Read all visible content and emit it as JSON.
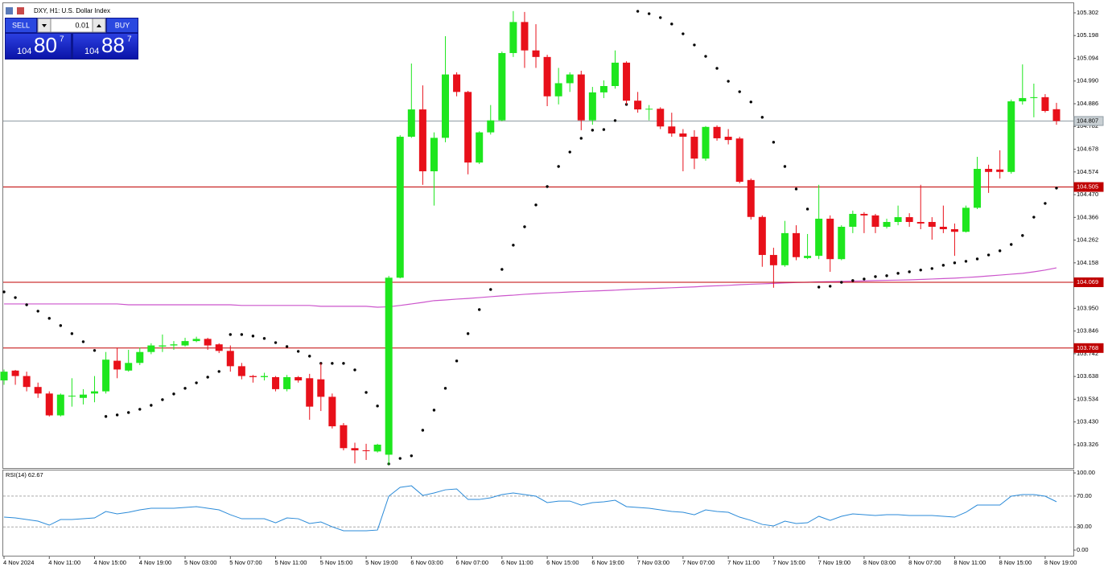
{
  "chart_data": [
    {
      "type": "candlestick",
      "title": "DXY, H1:  U.S. Dollar Index",
      "categories": [
        "4 Nov 2024",
        null,
        null,
        null,
        "4 Nov 11:00",
        null,
        null,
        null,
        "4 Nov 15:00",
        null,
        null,
        null,
        "4 Nov 19:00",
        null,
        null,
        null,
        "5 Nov 03:00",
        null,
        null,
        null,
        "5 Nov 07:00",
        null,
        null,
        null,
        "5 Nov 11:00",
        null,
        null,
        null,
        "5 Nov 15:00",
        null,
        null,
        null,
        "5 Nov 19:00",
        null,
        null,
        null,
        "6 Nov 03:00",
        null,
        null,
        null,
        "6 Nov 07:00",
        null,
        null,
        null,
        "6 Nov 11:00",
        null,
        null,
        null,
        "6 Nov 15:00",
        null,
        null,
        null,
        "6 Nov 19:00",
        null,
        null,
        null,
        "7 Nov 03:00",
        null,
        null,
        null,
        "7 Nov 07:00",
        null,
        null,
        null,
        "7 Nov 11:00",
        null,
        null,
        null,
        "7 Nov 15:00",
        null,
        null,
        null,
        "7 Nov 19:00",
        null,
        null,
        null,
        "8 Nov 03:00",
        null,
        null,
        null,
        "8 Nov 07:00",
        null,
        null,
        null,
        "8 Nov 11:00",
        null,
        null,
        null,
        "8 Nov 15:00",
        null,
        null,
        null,
        "8 Nov 19:00",
        null
      ],
      "open": [
        103.62,
        103.665,
        103.64,
        103.59,
        103.56,
        103.46,
        103.55,
        103.54,
        103.56,
        103.57,
        103.71,
        103.665,
        103.7,
        103.75,
        103.775,
        103.78,
        103.78,
        103.8,
        103.81,
        103.785,
        103.755,
        103.685,
        103.64,
        103.635,
        103.635,
        103.58,
        103.635,
        103.63,
        103.625,
        103.545,
        103.415,
        103.31,
        103.3,
        103.295,
        103.28,
        104.09,
        104.735,
        104.86,
        104.577,
        104.73,
        105.02,
        104.94,
        104.617,
        104.755,
        104.81,
        105.118,
        105.26,
        105.13,
        105.1,
        104.92,
        104.98,
        105.02,
        104.81,
        104.938,
        104.967,
        105.074,
        104.9,
        104.86,
        104.863,
        104.782,
        104.75,
        104.735,
        104.635,
        104.78,
        104.735,
        104.727,
        104.537,
        104.368,
        104.194,
        104.147,
        104.294,
        104.18,
        104.19,
        104.36,
        104.175,
        104.323,
        104.382,
        104.375,
        104.323,
        104.345,
        104.367,
        104.345,
        104.345,
        104.323,
        104.312,
        104.3,
        104.41,
        104.588,
        104.585,
        104.574,
        104.897,
        104.912,
        104.916,
        104.861
      ],
      "high": [
        103.67,
        103.668,
        103.66,
        103.61,
        103.57,
        103.56,
        103.63,
        103.58,
        103.64,
        103.75,
        103.77,
        103.76,
        103.77,
        103.79,
        103.83,
        103.8,
        103.815,
        103.82,
        103.815,
        103.79,
        103.78,
        103.7,
        103.645,
        103.655,
        103.64,
        103.645,
        103.64,
        103.65,
        103.7,
        103.56,
        103.425,
        103.335,
        103.33,
        103.33,
        104.098,
        104.742,
        105.07,
        104.97,
        104.755,
        105.195,
        105.03,
        104.945,
        104.76,
        104.88,
        105.125,
        105.31,
        105.306,
        105.25,
        105.11,
        105.05,
        105.03,
        105.037,
        104.963,
        104.993,
        105.13,
        105.08,
        104.94,
        104.88,
        104.87,
        104.845,
        104.77,
        104.765,
        104.784,
        104.787,
        104.77,
        104.735,
        104.544,
        104.375,
        104.227,
        104.35,
        104.33,
        104.29,
        104.515,
        104.375,
        104.33,
        104.397,
        104.39,
        104.382,
        104.36,
        104.42,
        104.385,
        104.515,
        104.367,
        104.42,
        104.338,
        104.42,
        104.643,
        104.607,
        104.673,
        104.905,
        105.066,
        104.978,
        104.93,
        104.89
      ],
      "low": [
        103.6,
        103.6,
        103.57,
        103.54,
        103.455,
        103.455,
        103.5,
        103.51,
        103.52,
        103.56,
        103.63,
        103.66,
        103.69,
        103.74,
        103.75,
        103.76,
        103.775,
        103.795,
        103.76,
        103.745,
        103.66,
        103.625,
        103.61,
        103.62,
        103.57,
        103.57,
        103.61,
        103.44,
        103.48,
        103.4,
        103.3,
        103.24,
        103.256,
        103.29,
        103.233,
        104.087,
        104.73,
        104.515,
        104.42,
        104.71,
        104.92,
        104.563,
        104.61,
        104.745,
        104.805,
        105.1,
        105.05,
        105.05,
        104.875,
        104.883,
        104.94,
        104.765,
        104.79,
        104.912,
        104.955,
        104.882,
        104.845,
        104.81,
        104.77,
        104.735,
        104.577,
        104.587,
        104.625,
        104.717,
        104.7,
        104.522,
        104.356,
        104.14,
        104.044,
        104.14,
        104.17,
        104.175,
        104.175,
        104.117,
        104.17,
        104.294,
        104.294,
        104.294,
        104.315,
        104.33,
        104.323,
        104.312,
        104.264,
        104.294,
        104.19,
        104.297,
        104.404,
        104.478,
        104.544,
        104.566,
        104.882,
        104.824,
        104.846,
        104.79
      ],
      "close": [
        103.66,
        103.64,
        103.59,
        103.56,
        103.46,
        103.555,
        103.55,
        103.555,
        103.57,
        103.715,
        103.67,
        103.7,
        103.75,
        103.78,
        103.78,
        103.785,
        103.8,
        103.81,
        103.78,
        103.755,
        103.685,
        103.64,
        103.635,
        103.64,
        103.58,
        103.635,
        103.62,
        103.5,
        103.545,
        103.41,
        103.31,
        103.3,
        103.297,
        103.326,
        104.09,
        104.735,
        104.86,
        104.577,
        104.73,
        105.02,
        104.94,
        104.617,
        104.755,
        104.81,
        105.118,
        105.26,
        105.13,
        105.1,
        104.92,
        104.98,
        105.02,
        104.81,
        104.938,
        104.967,
        105.074,
        104.9,
        104.86,
        104.863,
        104.782,
        104.75,
        104.735,
        104.635,
        104.78,
        104.728,
        104.72,
        104.529,
        104.368,
        104.194,
        104.147,
        104.294,
        104.184,
        104.19,
        104.36,
        104.175,
        104.323,
        104.382,
        104.375,
        104.323,
        104.345,
        104.367,
        104.345,
        104.338,
        104.323,
        104.312,
        104.3,
        104.41,
        104.588,
        104.574,
        104.574,
        104.897,
        104.912,
        104.916,
        104.853,
        104.807
      ],
      "up_color": "#1ee61e",
      "down_color": "#e8101a",
      "overlays": [
        {
          "type": "dots",
          "color": "#000000",
          "values": [
            104.025,
            103.999,
            103.966,
            103.937,
            103.904,
            103.871,
            103.834,
            103.797,
            103.757,
            103.455,
            103.462,
            103.473,
            103.488,
            103.506,
            103.532,
            103.558,
            103.584,
            103.609,
            103.635,
            103.661,
            103.83,
            103.83,
            103.823,
            103.812,
            103.793,
            103.775,
            103.753,
            103.731,
            103.698,
            103.698,
            103.698,
            103.668,
            103.565,
            103.503,
            103.238,
            103.263,
            103.275,
            103.392,
            103.484,
            103.584,
            103.709,
            103.834,
            103.944,
            104.036,
            104.128,
            104.239,
            104.323,
            104.423,
            104.507,
            104.599,
            104.665,
            104.728,
            104.765,
            104.768,
            104.809,
            104.883,
            105.309,
            105.298,
            105.28,
            105.251,
            105.206,
            105.155,
            105.103,
            105.048,
            104.989,
            104.941,
            104.894,
            104.824,
            104.71,
            104.599,
            104.496,
            104.404,
            104.047,
            104.051,
            104.069,
            104.077,
            104.084,
            104.095,
            104.099,
            104.11,
            104.117,
            104.125,
            104.132,
            104.147,
            104.158,
            104.165,
            104.176,
            104.194,
            104.213,
            104.242,
            104.283,
            104.367,
            104.43,
            104.5
          ]
        },
        {
          "type": "line",
          "color": "#cc55cc",
          "values": [
            103.97,
            103.97,
            103.97,
            103.97,
            103.97,
            103.97,
            103.97,
            103.97,
            103.97,
            103.97,
            103.97,
            103.966,
            103.966,
            103.966,
            103.966,
            103.966,
            103.966,
            103.966,
            103.966,
            103.966,
            103.966,
            103.963,
            103.963,
            103.963,
            103.963,
            103.963,
            103.963,
            103.963,
            103.959,
            103.959,
            103.959,
            103.959,
            103.959,
            103.955,
            103.957,
            103.963,
            103.97,
            103.977,
            103.985,
            103.988,
            103.992,
            103.995,
            103.999,
            104.003,
            104.007,
            104.01,
            104.014,
            104.017,
            104.02,
            104.022,
            104.025,
            104.027,
            104.029,
            104.031,
            104.033,
            104.036,
            104.038,
            104.04,
            104.042,
            104.044,
            104.046,
            104.048,
            104.051,
            104.053,
            104.055,
            104.058,
            104.06,
            104.062,
            104.064,
            104.066,
            104.068,
            104.069,
            104.071,
            104.072,
            104.073,
            104.074,
            104.075,
            104.077,
            104.078,
            104.079,
            104.08,
            104.082,
            104.084,
            104.086,
            104.088,
            104.091,
            104.094,
            104.098,
            104.102,
            104.106,
            104.11,
            104.117,
            104.125,
            104.135
          ]
        }
      ],
      "hlines": [
        {
          "value": 104.807,
          "color": "#909ca4",
          "label_color": "#c9d0d4",
          "text_color": "#000000"
        },
        {
          "value": 104.505,
          "color": "#c00000",
          "label_color": "#c00000",
          "text_color": "#ffffff"
        },
        {
          "value": 104.069,
          "color": "#c00000",
          "label_color": "#c00000",
          "text_color": "#ffffff"
        },
        {
          "value": 103.768,
          "color": "#c00000",
          "label_color": "#c00000",
          "text_color": "#ffffff"
        }
      ],
      "ylim": [
        103.219,
        105.346
      ],
      "yticks": [
        105.302,
        105.198,
        105.094,
        {
          "value": 104.99,
          "label": "104.990"
        },
        104.886,
        104.782,
        104.678,
        104.574,
        {
          "value": 104.47,
          "label": "104.470"
        },
        104.366,
        104.262,
        104.158,
        {
          "value": 103.95,
          "label": "103.950"
        },
        103.846,
        103.742,
        103.638,
        103.534,
        {
          "value": 103.43,
          "label": "103.430"
        },
        103.326
      ],
      "grid": false
    },
    {
      "type": "line",
      "title": "RSI(14) 62.67",
      "color": "#2a8ad8",
      "values": [
        42.7,
        41.7,
        39.6,
        37.5,
        32.3,
        39.6,
        39.6,
        40.6,
        41.7,
        50.0,
        46.9,
        49.0,
        52.1,
        54.2,
        54.2,
        54.2,
        55.2,
        56.3,
        54.2,
        52.1,
        45.8,
        40.6,
        40.6,
        40.6,
        35.4,
        41.7,
        40.6,
        34.4,
        36.5,
        30.2,
        25.0,
        25.0,
        25.0,
        26.0,
        69.8,
        81.3,
        83.3,
        70.8,
        74.0,
        78.1,
        79.2,
        65.6,
        65.6,
        67.7,
        71.9,
        74.0,
        71.9,
        69.8,
        61.5,
        63.5,
        63.5,
        58.3,
        61.5,
        62.5,
        64.6,
        56.3,
        55.2,
        54.2,
        52.1,
        50.0,
        49.0,
        45.8,
        52.1,
        50.0,
        49.0,
        42.7,
        38.5,
        33.3,
        31.3,
        37.5,
        34.4,
        35.4,
        43.8,
        38.5,
        43.8,
        46.9,
        45.8,
        44.8,
        45.8,
        45.8,
        44.8,
        44.8,
        44.8,
        43.8,
        42.7,
        49.0,
        58.3,
        58.3,
        58.3,
        69.8,
        71.9,
        71.9,
        69.8,
        62.67
      ],
      "ylim": [
        -8.3,
        104.2
      ],
      "yticks": [
        {
          "value": 100,
          "label": "100.00"
        },
        {
          "value": 70,
          "label": "70.00"
        },
        {
          "value": 30,
          "label": "30.00"
        },
        {
          "value": 0,
          "label": "0.00"
        }
      ],
      "levels": [
        70,
        30
      ]
    }
  ],
  "trade_panel": {
    "sell": "SELL",
    "lot": "0.01",
    "buy": "BUY",
    "bid": {
      "big_figure": "104",
      "pips": "80",
      "point": "7"
    },
    "ask": {
      "big_figure": "104",
      "pips": "88",
      "point": "7"
    }
  }
}
